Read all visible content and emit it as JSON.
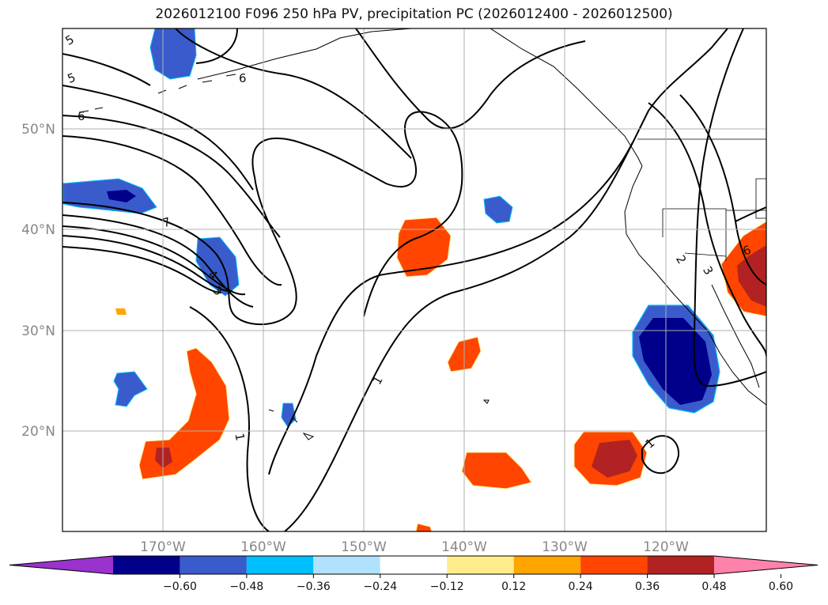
{
  "title": "2026012100 F096 250 hPa PV, precipitation PC (2026012400 - 2026012500)",
  "map": {
    "lon_labels": [
      "170°W",
      "160°W",
      "150°W",
      "140°W",
      "130°W",
      "120°W"
    ],
    "lat_labels": [
      "50°N",
      "40°N",
      "30°N",
      "20°N"
    ],
    "grid": true,
    "pv_contour_labels": [
      "5",
      "5",
      "6",
      "6",
      "7",
      "4",
      "3",
      "1",
      "1",
      "1",
      "2",
      "3",
      "6"
    ]
  },
  "colorbar": {
    "ticks": [
      "−0.60",
      "−0.48",
      "−0.36",
      "−0.24",
      "−0.12",
      "0.12",
      "0.24",
      "0.36",
      "0.48",
      "0.60"
    ],
    "colors": [
      "#9a32cd",
      "#00008b",
      "#3a5bcc",
      "#00bfff",
      "#b0e2ff",
      "#ffffff",
      "#ffec8b",
      "#ffa500",
      "#ff4500",
      "#b22222",
      "#ff82ab"
    ]
  }
}
